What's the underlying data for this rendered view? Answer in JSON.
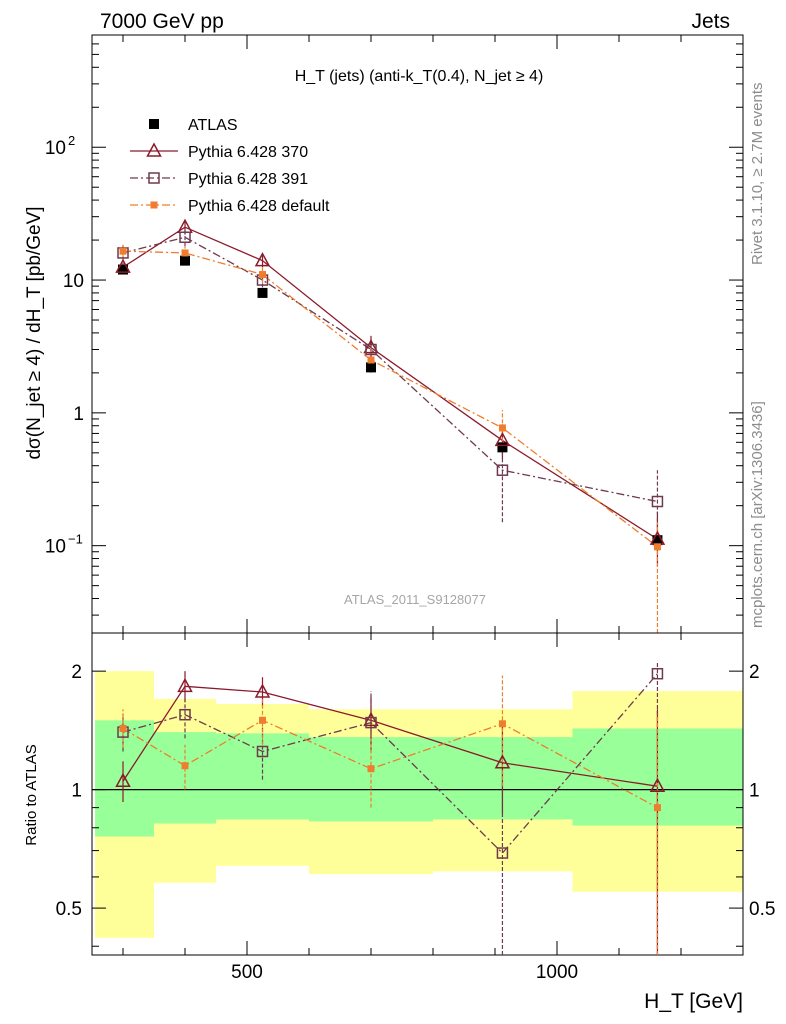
{
  "header": {
    "energy_label": "7000 GeV pp",
    "process_label": "Jets"
  },
  "side_labels": {
    "rivet": "Rivet 3.1.10, ≥ 2.7M events",
    "mcplots": "mcplots.cern.ch [arXiv:1306.3436]"
  },
  "chart_data": [
    {
      "type": "scatter",
      "panel": "main",
      "title": "H_T (jets) (anti-k_T(0.4), N_jet ≥ 4)",
      "xlabel": "H_T [GeV]",
      "ylabel": "dσ(N_jet ≥ 4) / dH_T [pb/GeV]",
      "y_scale": "log",
      "xlim": [
        250,
        1300
      ],
      "ylim": [
        0.022,
        700
      ],
      "y_tick_labels": [
        "10^-1",
        "1",
        "10",
        "10^2"
      ],
      "watermark": "ATLAS_2011_S9128077",
      "legend_position": "top-left",
      "bin_edges": [
        255,
        350,
        450,
        600,
        800,
        1025,
        1300
      ],
      "x": [
        300,
        400,
        525,
        700,
        912,
        1162
      ],
      "series": [
        {
          "name": "ATLAS",
          "color": "#000000",
          "marker": "filled-square",
          "line": "none",
          "values": [
            12,
            14,
            8.0,
            2.2,
            0.55,
            0.11
          ]
        },
        {
          "name": "Pythia 6.428 370",
          "color": "#8b1a2b",
          "marker": "open-triangle",
          "line": "solid",
          "values": [
            12.5,
            25,
            14,
            3.1,
            0.62,
            0.112
          ],
          "err_low": [
            11.5,
            22,
            12.5,
            2.6,
            0.45,
            0.07
          ],
          "err_high": [
            13.5,
            28,
            15.5,
            3.8,
            0.82,
            0.18
          ]
        },
        {
          "name": "Pythia 6.428 391",
          "color": "#6e3a4e",
          "marker": "open-square",
          "line": "dash-dot",
          "values": [
            16,
            21,
            10,
            3.0,
            0.37,
            0.215
          ],
          "err_low": [
            14,
            18,
            8.8,
            2.5,
            0.15,
            0.1
          ],
          "err_high": [
            18,
            24,
            11.2,
            3.6,
            0.58,
            0.37
          ]
        },
        {
          "name": "Pythia 6.428 default",
          "color": "#f07d2e",
          "marker": "filled-square",
          "line": "dash-dot",
          "values": [
            16.5,
            16,
            11,
            2.5,
            0.77,
            0.098
          ],
          "err_low": [
            14.5,
            14,
            9.5,
            2.0,
            0.55,
            0.02
          ],
          "err_high": [
            18.5,
            18,
            12.5,
            3.1,
            1.05,
            0.15
          ]
        }
      ]
    },
    {
      "type": "scatter",
      "panel": "ratio",
      "ylabel": "Ratio to ATLAS",
      "xlabel": "H_T [GeV]",
      "xlim": [
        250,
        1300
      ],
      "ylim": [
        0.38,
        2.5
      ],
      "y_scale": "log",
      "y_ticks": [
        0.5,
        1,
        2
      ],
      "x_ticks": [
        500,
        1000
      ],
      "reference_line": 1,
      "bands": {
        "bin_edges": [
          255,
          350,
          450,
          600,
          800,
          1025,
          1300
        ],
        "inner_color": "#99ff99",
        "outer_color": "#ffff99",
        "inner_low": [
          0.76,
          0.82,
          0.84,
          0.83,
          0.84,
          0.81
        ],
        "inner_high": [
          1.5,
          1.4,
          1.39,
          1.36,
          1.36,
          1.43
        ],
        "outer_low": [
          0.42,
          0.58,
          0.64,
          0.61,
          0.62,
          0.55
        ],
        "outer_high": [
          2.0,
          1.7,
          1.65,
          1.6,
          1.6,
          1.78
        ]
      },
      "x": [
        300,
        400,
        525,
        700,
        912,
        1162
      ],
      "series": [
        {
          "name": "Pythia 6.428 370",
          "color": "#8b1a2b",
          "marker": "open-triangle",
          "line": "solid",
          "values": [
            1.05,
            1.83,
            1.77,
            1.5,
            1.17,
            1.02
          ],
          "err_low": [
            0.93,
            1.67,
            1.63,
            1.3,
            0.87,
            0.38
          ],
          "err_high": [
            1.18,
            2.0,
            1.93,
            1.72,
            1.5,
            1.6
          ]
        },
        {
          "name": "Pythia 6.428 391",
          "color": "#6e3a4e",
          "marker": "open-square",
          "line": "dash-dot",
          "values": [
            1.4,
            1.55,
            1.25,
            1.48,
            0.69,
            1.97
          ],
          "err_low": [
            1.25,
            1.35,
            1.06,
            1.25,
            0.38,
            0.38
          ],
          "err_high": [
            1.56,
            1.72,
            1.45,
            1.78,
            1.04,
            2.1
          ]
        },
        {
          "name": "Pythia 6.428 default",
          "color": "#f07d2e",
          "marker": "filled-square",
          "line": "dash-dot",
          "values": [
            1.43,
            1.15,
            1.5,
            1.13,
            1.47,
            0.9
          ],
          "err_low": [
            1.28,
            1.0,
            1.3,
            0.9,
            1.02,
            0.38
          ],
          "err_high": [
            1.6,
            1.3,
            1.7,
            1.35,
            1.95,
            1.55
          ]
        }
      ]
    }
  ]
}
